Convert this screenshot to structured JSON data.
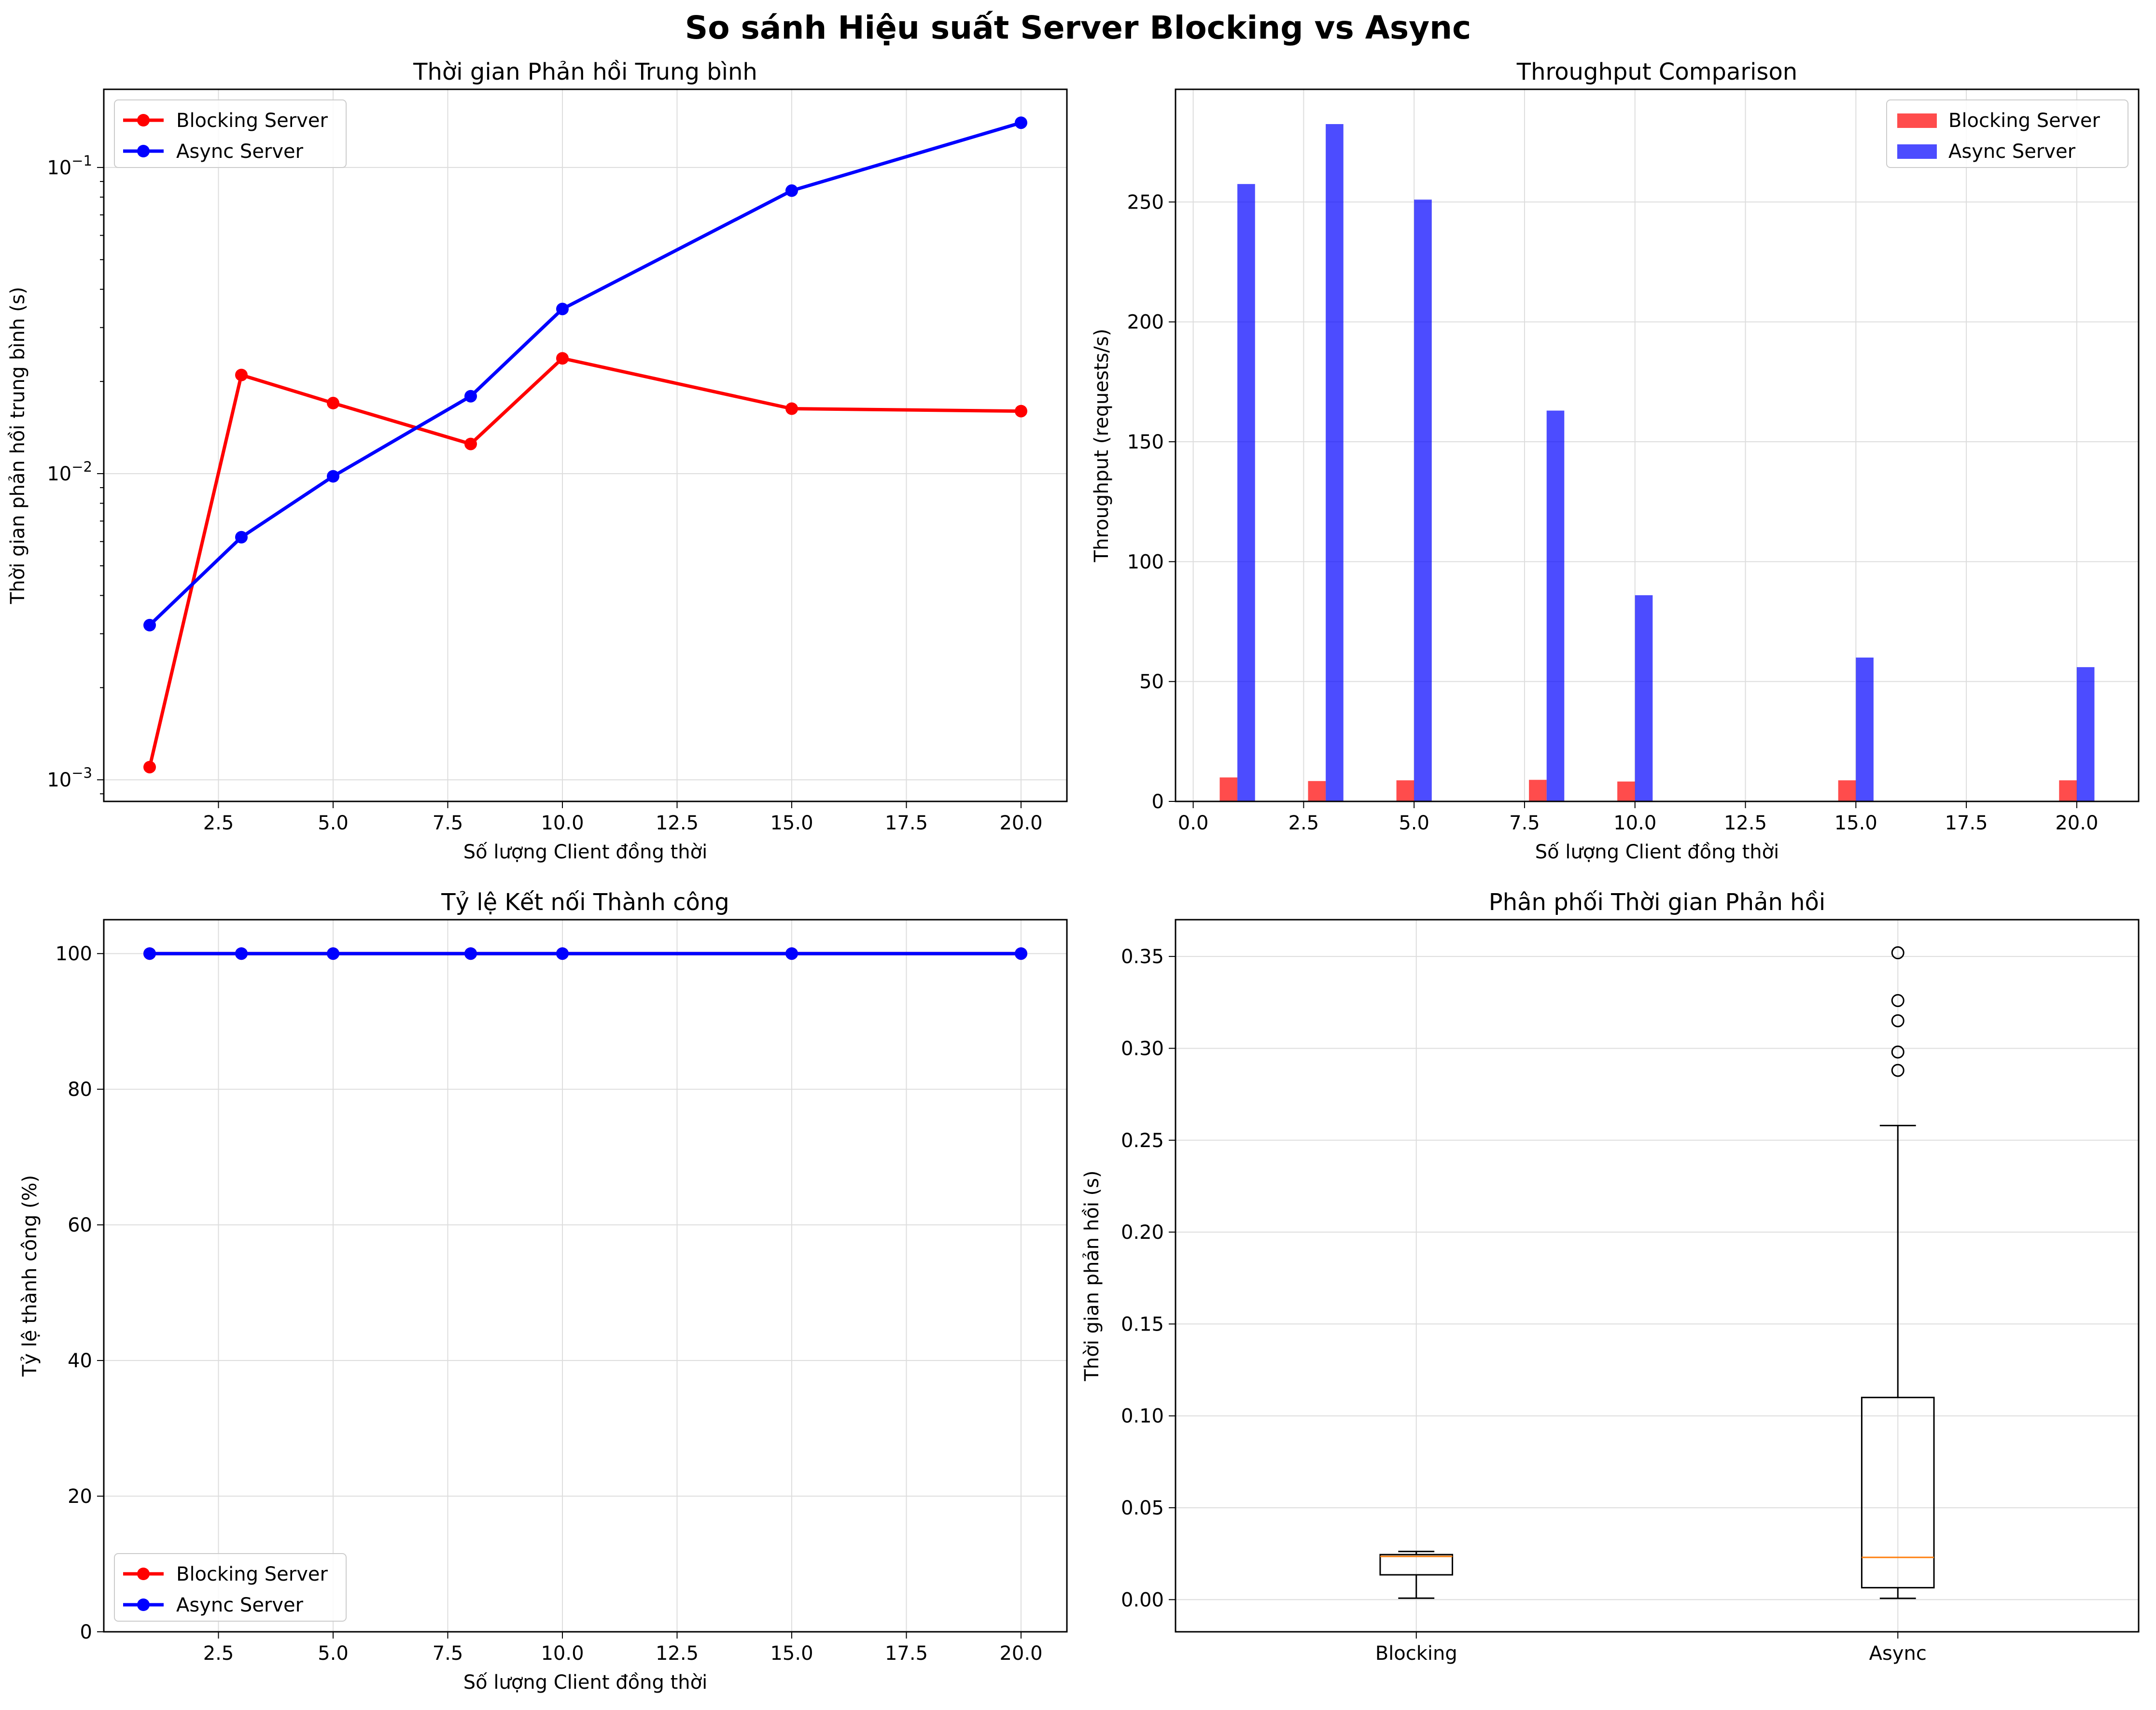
{
  "figure": {
    "title": "So sánh Hiệu suất Server Blocking vs Async"
  },
  "colors": {
    "blocking": "#ff0000",
    "async": "#0000ff",
    "median": "#ff7f0e",
    "grid": "#dddddd"
  },
  "chart_data": [
    {
      "type": "line",
      "title": "Thời gian Phản hồi Trung bình",
      "xlabel": "Số lượng Client đồng thời",
      "ylabel": "Thời gian phản hồi trung bình (s)",
      "yscale": "log",
      "xlim": [
        0,
        21
      ],
      "ylim": [
        0.00085,
        0.18
      ],
      "xticks": [
        2.5,
        5.0,
        7.5,
        10.0,
        12.5,
        15.0,
        17.5,
        20.0
      ],
      "xtick_labels": [
        "2.5",
        "5.0",
        "7.5",
        "10.0",
        "12.5",
        "15.0",
        "17.5",
        "20.0"
      ],
      "yticks": [
        0.001,
        0.01,
        0.1
      ],
      "ytick_labels": [
        {
          "base": "10",
          "exp": "−3"
        },
        {
          "base": "10",
          "exp": "−2"
        },
        {
          "base": "10",
          "exp": "−1"
        }
      ],
      "x": [
        1,
        3,
        5,
        8,
        10,
        15,
        20
      ],
      "series": [
        {
          "name": "Blocking Server",
          "color": "#ff0000",
          "values": [
            0.0011,
            0.021,
            0.017,
            0.0125,
            0.0238,
            0.0163,
            0.016
          ]
        },
        {
          "name": "Async Server",
          "color": "#0000ff",
          "values": [
            0.0032,
            0.0062,
            0.0098,
            0.0179,
            0.0345,
            0.084,
            0.14
          ]
        }
      ],
      "grid": true,
      "legend": "upper-left"
    },
    {
      "type": "bar",
      "title": "Throughput Comparison",
      "xlabel": "Số lượng Client đồng thời",
      "ylabel": "Throughput (requests/s)",
      "xlim": [
        -0.4,
        21.4
      ],
      "ylim": [
        0,
        297
      ],
      "xticks": [
        0.0,
        2.5,
        5.0,
        7.5,
        10.0,
        12.5,
        15.0,
        17.5,
        20.0
      ],
      "xtick_labels": [
        "0.0",
        "2.5",
        "5.0",
        "7.5",
        "10.0",
        "12.5",
        "15.0",
        "17.5",
        "20.0"
      ],
      "yticks": [
        0,
        50,
        100,
        150,
        200,
        250
      ],
      "ytick_labels": [
        "0",
        "50",
        "100",
        "150",
        "200",
        "250"
      ],
      "x": [
        1,
        3,
        5,
        8,
        10,
        15,
        20
      ],
      "bar_width": 0.4,
      "series": [
        {
          "name": "Blocking Server",
          "color": "#ff0000",
          "values": [
            10,
            8.5,
            8.8,
            9,
            8.3,
            8.8,
            8.8
          ]
        },
        {
          "name": "Async Server",
          "color": "#0000ff",
          "values": [
            257.5,
            282.5,
            251,
            163,
            86,
            60,
            56
          ]
        }
      ],
      "grid": true,
      "legend": "upper-right"
    },
    {
      "type": "line",
      "title": "Tỷ lệ Kết nối Thành công",
      "xlabel": "Số lượng Client đồng thời",
      "ylabel": "Tỷ lệ thành công (%)",
      "xlim": [
        0,
        21
      ],
      "ylim": [
        0,
        105
      ],
      "xticks": [
        2.5,
        5.0,
        7.5,
        10.0,
        12.5,
        15.0,
        17.5,
        20.0
      ],
      "xtick_labels": [
        "2.5",
        "5.0",
        "7.5",
        "10.0",
        "12.5",
        "15.0",
        "17.5",
        "20.0"
      ],
      "yticks": [
        0,
        20,
        40,
        60,
        80,
        100
      ],
      "ytick_labels": [
        "0",
        "20",
        "40",
        "60",
        "80",
        "100"
      ],
      "x": [
        1,
        3,
        5,
        8,
        10,
        15,
        20
      ],
      "series": [
        {
          "name": "Blocking Server",
          "color": "#ff0000",
          "values": [
            100,
            100,
            100,
            100,
            100,
            100,
            100
          ]
        },
        {
          "name": "Async Server",
          "color": "#0000ff",
          "values": [
            100,
            100,
            100,
            100,
            100,
            100,
            100
          ]
        }
      ],
      "grid": true,
      "legend": "lower-left"
    },
    {
      "type": "box",
      "title": "Phân phối Thời gian Phản hồi",
      "xlabel": "",
      "ylabel": "Thời gian phản hồi (s)",
      "xlim": [
        0.5,
        2.5
      ],
      "ylim": [
        -0.0175,
        0.37
      ],
      "yticks": [
        0,
        0.05,
        0.1,
        0.15,
        0.2,
        0.25,
        0.3,
        0.35
      ],
      "ytick_labels": [
        "0.00",
        "0.05",
        "0.10",
        "0.15",
        "0.20",
        "0.25",
        "0.30",
        "0.35"
      ],
      "categories": [
        "Blocking",
        "Async"
      ],
      "boxes": [
        {
          "label": "Blocking",
          "whisker_low": 0.0008,
          "q1": 0.0135,
          "median": 0.0235,
          "q3": 0.0245,
          "whisker_high": 0.0262,
          "outliers": []
        },
        {
          "label": "Async",
          "whisker_low": 0.0007,
          "q1": 0.0065,
          "median": 0.023,
          "q3": 0.11,
          "whisker_high": 0.258,
          "outliers": [
            0.288,
            0.298,
            0.315,
            0.326,
            0.352
          ]
        }
      ],
      "grid": true
    }
  ]
}
